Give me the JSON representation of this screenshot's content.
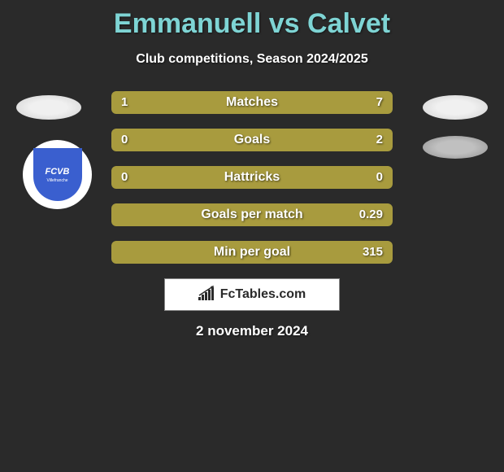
{
  "title": "Emmanuell vs Calvet",
  "subtitle": "Club competitions, Season 2024/2025",
  "date": "2 november 2024",
  "branding": {
    "text": "FcTables.com",
    "icon_color": "#2a2a2a"
  },
  "badge": {
    "text": "FCVB",
    "subtext": "Villefranche",
    "bg_color": "#3a5fcf"
  },
  "colors": {
    "background": "#2a2a2a",
    "title_color": "#7ed4d4",
    "bar_track": "#5a5a3a",
    "left_fill": "#a89b3e",
    "right_fill": "#a89b3e",
    "full_fill": "#a89b3e",
    "text": "#ffffff"
  },
  "stats": [
    {
      "label": "Matches",
      "left_value": "1",
      "right_value": "7",
      "left_pct": 18,
      "right_pct": 82,
      "left_color": "#a89b3e",
      "right_color": "#a89b3e",
      "mode": "split"
    },
    {
      "label": "Goals",
      "left_value": "0",
      "right_value": "2",
      "left_pct": 0,
      "right_pct": 100,
      "left_color": "#a89b3e",
      "right_color": "#a89b3e",
      "mode": "full"
    },
    {
      "label": "Hattricks",
      "left_value": "0",
      "right_value": "0",
      "left_pct": 0,
      "right_pct": 0,
      "left_color": "#a89b3e",
      "right_color": "#a89b3e",
      "mode": "full"
    },
    {
      "label": "Goals per match",
      "left_value": "",
      "right_value": "0.29",
      "left_pct": 0,
      "right_pct": 100,
      "left_color": "#a89b3e",
      "right_color": "#a89b3e",
      "mode": "full"
    },
    {
      "label": "Min per goal",
      "left_value": "",
      "right_value": "315",
      "left_pct": 0,
      "right_pct": 100,
      "left_color": "#a89b3e",
      "right_color": "#a89b3e",
      "mode": "full"
    }
  ]
}
